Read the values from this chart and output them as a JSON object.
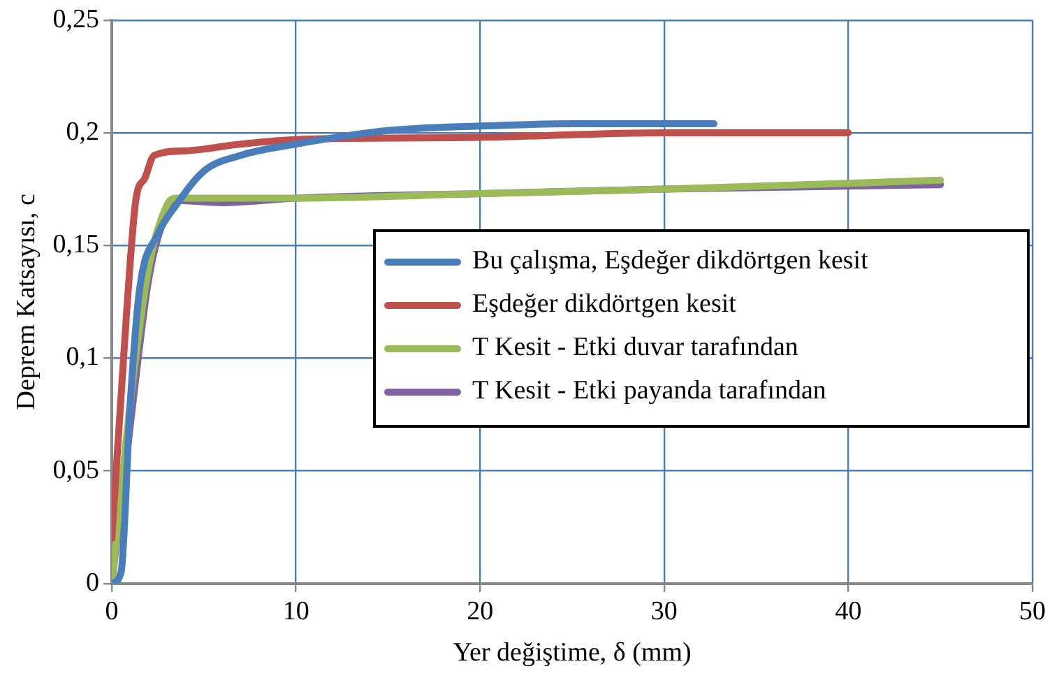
{
  "chart_data": {
    "type": "line",
    "xlabel": "Yer değiştime, δ (mm)",
    "ylabel": "Deprem Katsayısı, c",
    "xlim": [
      0,
      50
    ],
    "xticks": [
      0,
      10,
      20,
      30,
      40,
      50
    ],
    "ylim": [
      0,
      0.25
    ],
    "yticks": [
      0,
      {
        "value": 0.05,
        "label": "0,05"
      },
      {
        "value": 0.1,
        "label": "0,1"
      },
      {
        "value": 0.15,
        "label": "0,15"
      },
      {
        "value": 0.2,
        "label": "0,2"
      },
      {
        "value": 0.25,
        "label": "0,25"
      }
    ],
    "grid": true,
    "legend": "bottom right",
    "marker": "none",
    "line_style": "solid",
    "series": [
      {
        "name": "Bu çalışma, Eşdeğer dikdörtgen kesit",
        "color": "#4a7ebb",
        "x": [
          0,
          0.5,
          1,
          1.5,
          2.5,
          3.5,
          5,
          7,
          10,
          15,
          20,
          25,
          32.7
        ],
        "values": [
          0,
          0.005,
          0.08,
          0.13,
          0.155,
          0.168,
          0.183,
          0.19,
          0.195,
          0.201,
          0.203,
          0.204,
          0.204
        ]
      },
      {
        "name": "Eşdeğer dikdörtgen kesit",
        "color": "#c0504d",
        "x": [
          0,
          0.8,
          1.3,
          1.8,
          2.3,
          4,
          7,
          10,
          20,
          30,
          40
        ],
        "values": [
          0.02,
          0.12,
          0.17,
          0.18,
          0.19,
          0.192,
          0.195,
          0.197,
          0.198,
          0.2,
          0.2
        ]
      },
      {
        "name": "T Kesit - Etki duvar tarafından",
        "color": "#9bbb59",
        "x": [
          0,
          1,
          2,
          3,
          3.5,
          10,
          20,
          30,
          45
        ],
        "values": [
          0,
          0.08,
          0.14,
          0.168,
          0.171,
          0.171,
          0.173,
          0.175,
          0.179
        ]
      },
      {
        "name": "T Kesit - Etki payanda tarafından",
        "color": "#8064a2",
        "x": [
          0,
          1,
          2,
          3,
          3.5,
          6,
          10,
          20,
          30,
          45
        ],
        "values": [
          0,
          0.07,
          0.135,
          0.165,
          0.17,
          0.169,
          0.171,
          0.173,
          0.175,
          0.177
        ]
      }
    ]
  }
}
